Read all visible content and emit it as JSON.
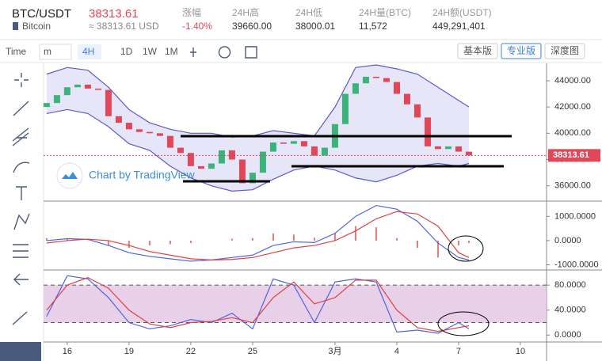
{
  "header": {
    "pair": "BTC/USDT",
    "price": "38313.61",
    "coin": "Bitcoin",
    "usd": "≈ 38313.61 USD",
    "stats": [
      {
        "label": "涨幅",
        "value": "-1.40%",
        "color": "#e0485a"
      },
      {
        "label": "24H高",
        "value": "39660.00"
      },
      {
        "label": "24H低",
        "value": "38000.01"
      },
      {
        "label": "24H量(BTC)",
        "value": "11,572"
      },
      {
        "label": "24H额(USDT)",
        "value": "449,291,401"
      }
    ]
  },
  "toolbar": {
    "intervals": [
      "Time",
      "m",
      "4H",
      "1D",
      "1W",
      "1M"
    ],
    "selected": 2,
    "views": [
      "基本版",
      "专业版",
      "深度图"
    ],
    "selected_view": 1
  },
  "chart_data": [
    {
      "type": "candlestick",
      "watermark": "Chart by TradingView",
      "up_color": "#3bb37b",
      "down_color": "#e0485a",
      "band_color": "#5a5ad0",
      "x": [
        -1,
        -0.5,
        0,
        0.5,
        1,
        1.5,
        2,
        2.5,
        3,
        3.5,
        4,
        4.5,
        5,
        5.5,
        6,
        6.5,
        7,
        7.5,
        8,
        8.5,
        9,
        9.5,
        10,
        10.5,
        11,
        11.5,
        12,
        12.5,
        13,
        13.5,
        14,
        14.5,
        15,
        15.5,
        16,
        16.5,
        17,
        17.5,
        18,
        18.5,
        19,
        19.5
      ],
      "open": [
        42000,
        42300,
        42900,
        43500,
        43700,
        43400,
        43300,
        41300,
        40800,
        40300,
        40100,
        40000,
        39800,
        38900,
        38500,
        37500,
        37300,
        37700,
        38700,
        38000,
        36200,
        37000,
        38600,
        39300,
        39200,
        39400,
        39000,
        38300,
        38900,
        40700,
        43000,
        43800,
        44300,
        44200,
        43900,
        43000,
        42200,
        41200,
        39000,
        38800,
        39000,
        38600
      ],
      "close": [
        42300,
        42900,
        43500,
        43700,
        43400,
        43300,
        41300,
        40800,
        40300,
        40100,
        40000,
        39800,
        38900,
        38500,
        37500,
        37300,
        37700,
        38700,
        38000,
        36200,
        37000,
        38600,
        39300,
        39200,
        39400,
        39000,
        38300,
        38900,
        40700,
        43000,
        43800,
        44300,
        44200,
        43900,
        43000,
        42200,
        41200,
        39000,
        38800,
        39000,
        38600,
        38313.61
      ],
      "bands": {
        "x": [
          -1,
          0,
          1,
          2,
          3,
          4,
          5,
          6,
          7,
          8,
          9,
          10,
          11,
          12,
          13,
          14,
          15,
          16,
          17,
          18,
          19,
          19.5
        ],
        "upper": [
          44500,
          45000,
          44800,
          43500,
          41800,
          40800,
          40300,
          40000,
          40000,
          39700,
          39800,
          40200,
          40000,
          39800,
          42000,
          45000,
          45200,
          44900,
          44500,
          43500,
          42500,
          42000
        ],
        "lower": [
          41500,
          41800,
          41500,
          40500,
          39200,
          38700,
          37500,
          36600,
          36000,
          35600,
          35700,
          36500,
          37200,
          37500,
          37200,
          36600,
          36300,
          36800,
          37500,
          37700,
          37500,
          37700
        ]
      },
      "last_price": {
        "value": 38313.61,
        "label": "38313.61"
      },
      "xlim": [
        -1.15,
        23.27
      ],
      "ylim": [
        34900,
        45200
      ],
      "yticks": [
        {
          "value": 36000,
          "label": "36000.00"
        },
        {
          "value": 38000,
          "label": "38000.00"
        },
        {
          "value": 40000,
          "label": "40000.00"
        },
        {
          "value": 42000,
          "label": "42000.00"
        },
        {
          "value": 44000,
          "label": "44000.00"
        }
      ]
    },
    {
      "type": "macd",
      "x": [
        -1,
        0,
        1,
        2,
        3,
        4,
        5,
        6,
        7,
        8,
        9,
        10,
        11,
        12,
        13,
        14,
        15,
        16,
        17,
        18,
        19,
        19.5
      ],
      "series": [
        {
          "name": "DIF",
          "color": "#4f63e0",
          "values": [
            0,
            80,
            50,
            -200,
            -500,
            -650,
            -750,
            -850,
            -800,
            -700,
            -600,
            -200,
            -50,
            -80,
            300,
            1000,
            1450,
            1300,
            800,
            -100,
            -700,
            -800
          ]
        },
        {
          "name": "DEA",
          "color": "#e04040",
          "values": [
            -100,
            0,
            60,
            0,
            -200,
            -450,
            -600,
            -750,
            -800,
            -780,
            -700,
            -500,
            -300,
            -200,
            0,
            400,
            900,
            1200,
            1100,
            600,
            -500,
            -700
          ]
        }
      ],
      "histogram": {
        "color": "#e04040",
        "values": [
          100,
          80,
          -10,
          -200,
          -300,
          -200,
          -150,
          -100,
          0,
          80,
          100,
          300,
          250,
          120,
          300,
          600,
          550,
          100,
          -300,
          -700,
          -200,
          -100
        ]
      },
      "xlim": [
        -1.15,
        23.27
      ],
      "ylim": [
        -1180,
        1600
      ],
      "yticks": [
        {
          "value": -1000,
          "label": "-1000.0000"
        },
        {
          "value": 0,
          "label": "0.0000"
        },
        {
          "value": 1000,
          "label": "1000.0000"
        }
      ]
    },
    {
      "type": "stoch",
      "x": [
        -1,
        0,
        1,
        2,
        3,
        4,
        5,
        6,
        7,
        8,
        9,
        10,
        11,
        12,
        13,
        14,
        15,
        16,
        17,
        18,
        19,
        19.5
      ],
      "series": [
        {
          "name": "K",
          "color": "#4f63e0",
          "values": [
            30,
            95,
            90,
            60,
            20,
            10,
            15,
            25,
            20,
            35,
            10,
            90,
            80,
            20,
            85,
            90,
            85,
            5,
            8,
            3,
            20,
            10
          ]
        },
        {
          "name": "D",
          "color": "#e04040",
          "values": [
            40,
            80,
            92,
            75,
            40,
            18,
            12,
            20,
            22,
            28,
            20,
            60,
            85,
            50,
            60,
            88,
            88,
            40,
            12,
            6,
            12,
            15
          ]
        }
      ],
      "levels": [
        20,
        80
      ],
      "band_color": "#e2c4e2",
      "xlim": [
        -1.15,
        23.27
      ],
      "ylim": [
        -11,
        103
      ],
      "yticks": [
        {
          "value": 0,
          "label": "0.0000"
        },
        {
          "value": 40,
          "label": "40.0000"
        },
        {
          "value": 80,
          "label": "80.0000"
        }
      ],
      "xticks": [
        {
          "value": 0,
          "label": "16"
        },
        {
          "value": 3,
          "label": "19"
        },
        {
          "value": 6,
          "label": "22"
        },
        {
          "value": 9,
          "label": "25"
        },
        {
          "value": 13,
          "label": "3月"
        },
        {
          "value": 16,
          "label": "4"
        },
        {
          "value": 19,
          "label": "7"
        },
        {
          "value": 22,
          "label": "10"
        }
      ]
    }
  ]
}
